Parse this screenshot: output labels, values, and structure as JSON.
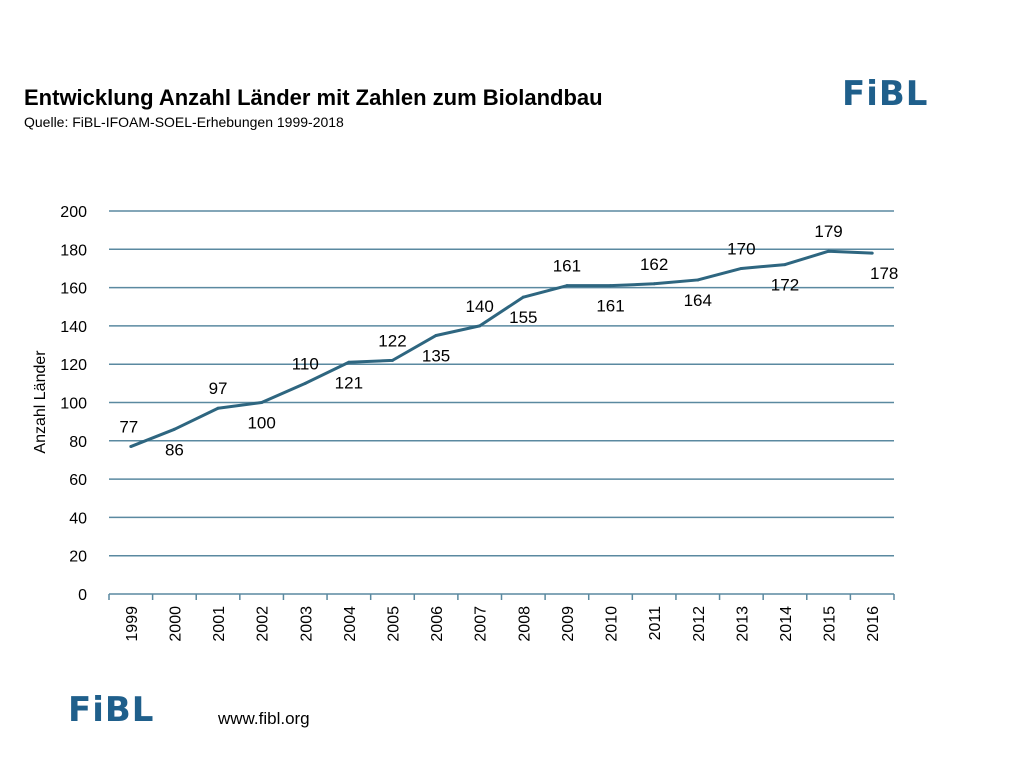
{
  "title": "Entwicklung Anzahl Länder mit Zahlen zum Biolandbau",
  "subtitle": "Quelle: FiBL-IFOAM-SOEL-Erhebungen 1999-2018",
  "logo_text": "FiBL",
  "footer": {
    "logo_text": "FiBL",
    "url": "www.fibl.org"
  },
  "colors": {
    "line": "#2e6680",
    "grid": "#5a89a0",
    "logo": "#1f5f8b"
  },
  "chart_data": {
    "type": "line",
    "title": "",
    "xlabel": "",
    "ylabel": "Anzahl Länder",
    "ylim": [
      0,
      200
    ],
    "y_ticks": [
      0,
      20,
      40,
      60,
      80,
      100,
      120,
      140,
      160,
      180,
      200
    ],
    "grid": true,
    "categories": [
      "1999",
      "2000",
      "2001",
      "2002",
      "2003",
      "2004",
      "2005",
      "2006",
      "2007",
      "2008",
      "2009",
      "2010",
      "2011",
      "2012",
      "2013",
      "2014",
      "2015",
      "2016"
    ],
    "series": [
      {
        "values": [
          77,
          86,
          97,
          100,
          110,
          121,
          122,
          135,
          140,
          155,
          161,
          161,
          162,
          164,
          170,
          172,
          179,
          178
        ]
      }
    ],
    "data_label_position": [
      "above",
      "below",
      "above",
      "below",
      "above",
      "below",
      "above",
      "below",
      "above",
      "below",
      "above",
      "below",
      "above",
      "below",
      "above",
      "below",
      "above",
      "below"
    ]
  }
}
